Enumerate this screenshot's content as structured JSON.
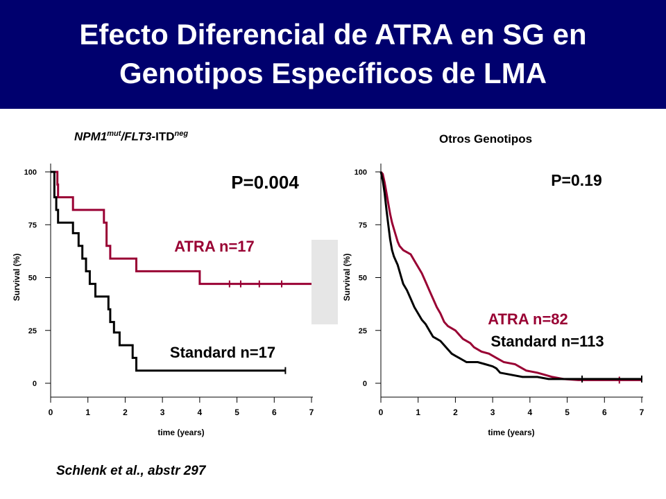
{
  "title": {
    "line1": "Efecto Diferencial de ATRA en SG en",
    "line2": "Genotipos Específicos de LMA"
  },
  "left_panel": {
    "title_parts": [
      "NPM1",
      "mut",
      "/FLT3-",
      "ITD",
      "neg"
    ]
  },
  "right_panel": {
    "title": "Otros Genotipos"
  },
  "citation": "Schlenk et al., abstr 297",
  "colors": {
    "banner": "#00006e",
    "atra": "#990033",
    "standard": "#000000",
    "connector": "#e6e6e6"
  },
  "chart_data": [
    {
      "type": "line",
      "subtype": "kaplan-meier",
      "xlabel": "time (years)",
      "ylabel": "Survival (%)",
      "xlim": [
        0,
        7
      ],
      "ylim": [
        0,
        100
      ],
      "xticks": [
        0,
        1,
        2,
        3,
        4,
        5,
        6,
        7
      ],
      "yticks": [
        0,
        25,
        50,
        75,
        100
      ],
      "annotation": "P=0.004",
      "series": [
        {
          "name": "ATRA  n=17",
          "color": "#990033",
          "points": [
            [
              0,
              100
            ],
            [
              0.18,
              100
            ],
            [
              0.18,
              94
            ],
            [
              0.2,
              94
            ],
            [
              0.2,
              88
            ],
            [
              0.6,
              88
            ],
            [
              0.6,
              82
            ],
            [
              1.43,
              82
            ],
            [
              1.43,
              76
            ],
            [
              1.5,
              76
            ],
            [
              1.5,
              65
            ],
            [
              1.6,
              65
            ],
            [
              1.6,
              59
            ],
            [
              2.3,
              59
            ],
            [
              2.3,
              53
            ],
            [
              4.0,
              53
            ],
            [
              4.0,
              47
            ],
            [
              7.0,
              47
            ]
          ],
          "censored": [
            [
              4.8,
              47
            ],
            [
              5.1,
              47
            ],
            [
              5.6,
              47
            ],
            [
              6.2,
              47
            ]
          ]
        },
        {
          "name": "Standard  n=17",
          "color": "#000000",
          "points": [
            [
              0,
              100
            ],
            [
              0.1,
              100
            ],
            [
              0.1,
              88
            ],
            [
              0.15,
              88
            ],
            [
              0.15,
              82
            ],
            [
              0.2,
              82
            ],
            [
              0.2,
              76
            ],
            [
              0.6,
              76
            ],
            [
              0.6,
              71
            ],
            [
              0.75,
              71
            ],
            [
              0.75,
              65
            ],
            [
              0.85,
              65
            ],
            [
              0.85,
              59
            ],
            [
              0.95,
              59
            ],
            [
              0.95,
              53
            ],
            [
              1.05,
              53
            ],
            [
              1.05,
              47
            ],
            [
              1.2,
              47
            ],
            [
              1.2,
              41
            ],
            [
              1.55,
              41
            ],
            [
              1.55,
              35
            ],
            [
              1.6,
              35
            ],
            [
              1.6,
              29
            ],
            [
              1.7,
              29
            ],
            [
              1.7,
              24
            ],
            [
              1.85,
              24
            ],
            [
              1.85,
              18
            ],
            [
              2.2,
              18
            ],
            [
              2.2,
              12
            ],
            [
              2.3,
              12
            ],
            [
              2.3,
              6
            ],
            [
              6.3,
              6
            ]
          ],
          "censored": [
            [
              6.3,
              6
            ]
          ]
        }
      ]
    },
    {
      "type": "line",
      "subtype": "kaplan-meier",
      "xlabel": "time (years)",
      "ylabel": "Survival (%)",
      "xlim": [
        0,
        7
      ],
      "ylim": [
        0,
        100
      ],
      "xticks": [
        0,
        1,
        2,
        3,
        4,
        5,
        6,
        7
      ],
      "yticks": [
        0,
        25,
        50,
        75,
        100
      ],
      "annotation": "P=0.19",
      "series": [
        {
          "name": "ATRA  n=82",
          "color": "#990033",
          "points": [
            [
              0,
              100
            ],
            [
              0.05,
              99
            ],
            [
              0.1,
              95
            ],
            [
              0.15,
              90
            ],
            [
              0.2,
              85
            ],
            [
              0.25,
              80
            ],
            [
              0.3,
              76
            ],
            [
              0.35,
              73
            ],
            [
              0.4,
              70
            ],
            [
              0.45,
              67
            ],
            [
              0.5,
              65
            ],
            [
              0.6,
              63
            ],
            [
              0.7,
              62
            ],
            [
              0.8,
              61
            ],
            [
              0.9,
              58
            ],
            [
              1.0,
              55
            ],
            [
              1.1,
              52
            ],
            [
              1.2,
              48
            ],
            [
              1.3,
              44
            ],
            [
              1.4,
              40
            ],
            [
              1.5,
              36
            ],
            [
              1.6,
              33
            ],
            [
              1.7,
              29
            ],
            [
              1.8,
              27
            ],
            [
              2.0,
              25
            ],
            [
              2.1,
              23
            ],
            [
              2.2,
              21
            ],
            [
              2.4,
              19
            ],
            [
              2.5,
              17
            ],
            [
              2.7,
              15
            ],
            [
              2.9,
              14
            ],
            [
              3.1,
              12
            ],
            [
              3.3,
              10
            ],
            [
              3.6,
              9
            ],
            [
              3.7,
              8
            ],
            [
              3.9,
              6
            ],
            [
              4.2,
              5
            ],
            [
              4.4,
              4
            ],
            [
              4.6,
              3
            ],
            [
              4.9,
              2
            ],
            [
              5.3,
              1.5
            ],
            [
              5.6,
              1.5
            ],
            [
              6.4,
              1.5
            ],
            [
              7.0,
              1.5
            ]
          ],
          "censored": [
            [
              6.4,
              1.5
            ]
          ]
        },
        {
          "name": "Standard  n=113",
          "color": "#000000",
          "points": [
            [
              0,
              100
            ],
            [
              0.05,
              96
            ],
            [
              0.1,
              90
            ],
            [
              0.15,
              82
            ],
            [
              0.2,
              75
            ],
            [
              0.25,
              68
            ],
            [
              0.3,
              63
            ],
            [
              0.35,
              60
            ],
            [
              0.4,
              58
            ],
            [
              0.45,
              56
            ],
            [
              0.5,
              53
            ],
            [
              0.55,
              50
            ],
            [
              0.6,
              47
            ],
            [
              0.7,
              44
            ],
            [
              0.8,
              40
            ],
            [
              0.9,
              36
            ],
            [
              1.0,
              33
            ],
            [
              1.1,
              30
            ],
            [
              1.2,
              28
            ],
            [
              1.3,
              25
            ],
            [
              1.4,
              22
            ],
            [
              1.5,
              21
            ],
            [
              1.6,
              20
            ],
            [
              1.7,
              18
            ],
            [
              1.8,
              16
            ],
            [
              1.9,
              14
            ],
            [
              2.0,
              13
            ],
            [
              2.1,
              12
            ],
            [
              2.2,
              11
            ],
            [
              2.3,
              10
            ],
            [
              2.6,
              10
            ],
            [
              2.8,
              9
            ],
            [
              3.0,
              8
            ],
            [
              3.1,
              7
            ],
            [
              3.2,
              5
            ],
            [
              3.5,
              4
            ],
            [
              3.8,
              3
            ],
            [
              4.2,
              3
            ],
            [
              4.5,
              2
            ],
            [
              5.0,
              2
            ],
            [
              5.4,
              2
            ],
            [
              6.0,
              2
            ],
            [
              7.0,
              2
            ]
          ],
          "censored": [
            [
              5.4,
              2
            ],
            [
              7.0,
              2
            ]
          ]
        }
      ]
    }
  ]
}
